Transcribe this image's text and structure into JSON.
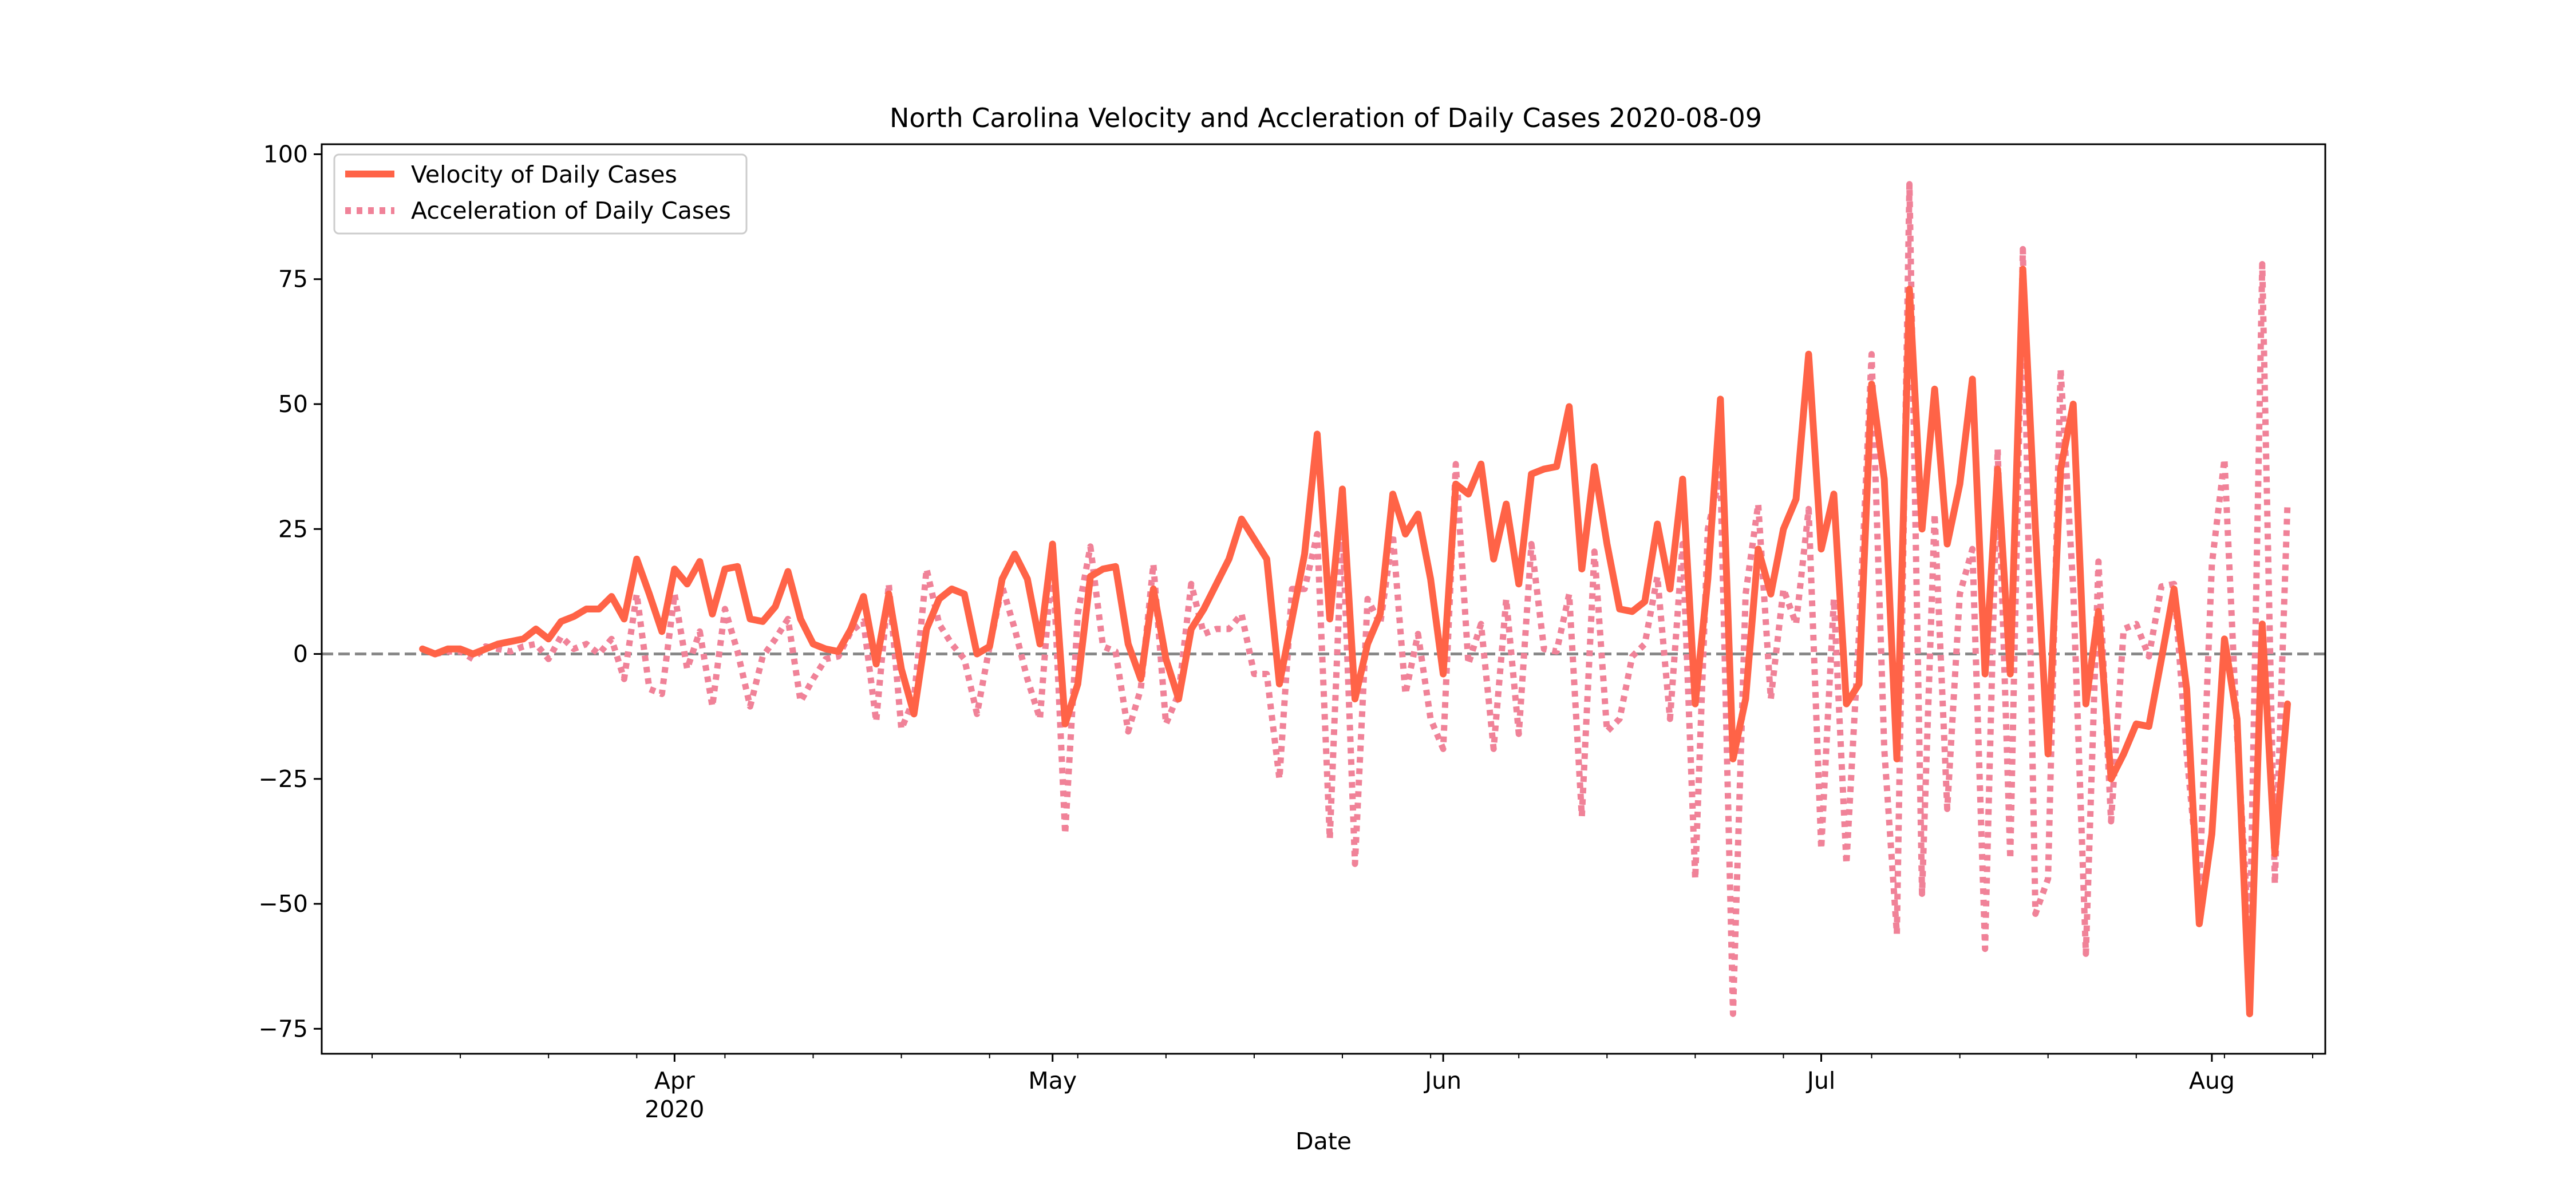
{
  "chart_data": {
    "type": "line",
    "title": "North Carolina Velocity and Accleration of Daily Cases 2020-08-09",
    "xlabel": "Date",
    "ylabel": "",
    "xlim": [
      "2020-03-04",
      "2020-08-10"
    ],
    "ylim": [
      -80,
      102
    ],
    "grid": false,
    "legend_position": "upper left",
    "x_ticks": [
      {
        "date": "2020-04-01",
        "label": "Apr",
        "sublabel": "2020"
      },
      {
        "date": "2020-05-01",
        "label": "May",
        "sublabel": ""
      },
      {
        "date": "2020-06-01",
        "label": "Jun",
        "sublabel": ""
      },
      {
        "date": "2020-07-01",
        "label": "Jul",
        "sublabel": ""
      },
      {
        "date": "2020-08-01",
        "label": "Aug",
        "sublabel": ""
      }
    ],
    "y_ticks": [
      {
        "value": 100,
        "label": "100"
      },
      {
        "value": 75,
        "label": "75"
      },
      {
        "value": 50,
        "label": "50"
      },
      {
        "value": 25,
        "label": "25"
      },
      {
        "value": 0,
        "label": "0"
      },
      {
        "value": -25,
        "label": "−25"
      },
      {
        "value": -50,
        "label": "−50"
      },
      {
        "value": -75,
        "label": "−75"
      }
    ],
    "reference_line": {
      "y": 0,
      "color": "#888888",
      "style": "dashed"
    },
    "start_date": "2020-03-12",
    "series": [
      {
        "name": "Velocity of Daily Cases",
        "color": "#ff6347",
        "style": "solid",
        "values": [
          1,
          0,
          1,
          1,
          0,
          1,
          2,
          2.5,
          3,
          5,
          3,
          6.5,
          7.5,
          9,
          9,
          11.5,
          7,
          19,
          12,
          4.5,
          17,
          14,
          18.5,
          8,
          17,
          17.5,
          7,
          6.5,
          9.5,
          16.5,
          7,
          2,
          1,
          0.5,
          5,
          11.5,
          -2,
          12,
          -3,
          -12,
          5,
          11,
          13,
          12,
          0,
          1.5,
          15,
          20,
          15,
          2,
          22,
          -14,
          -6,
          15.5,
          17,
          17.5,
          2,
          -5,
          13,
          -1,
          -9,
          5,
          9,
          14,
          19,
          27,
          23,
          19,
          -6,
          7,
          20,
          44,
          7,
          33,
          -9,
          2,
          8,
          32,
          24,
          28,
          15,
          -4,
          34,
          32,
          38,
          19,
          30,
          14,
          36,
          37,
          37.5,
          49.5,
          17,
          37.5,
          22,
          9,
          8.5,
          10.5,
          26,
          13,
          35,
          -10,
          15,
          51,
          -21,
          -9,
          21,
          12,
          25,
          31,
          60,
          21,
          32,
          -10,
          -6,
          54,
          35,
          -21,
          73,
          25,
          53,
          22,
          34,
          55,
          -4,
          37,
          -4,
          77,
          25,
          -20,
          37,
          50,
          -10,
          8.5,
          -25,
          -20,
          -14,
          -14.5,
          -1,
          13,
          -7,
          -54,
          -36,
          3,
          -13,
          -72,
          6,
          -40,
          -10
        ]
      },
      {
        "name": "Acceleration of Daily Cases",
        "color": "#f08298",
        "style": "dotted",
        "values": [
          null,
          0,
          0.5,
          0.5,
          -1,
          1.5,
          1,
          0.5,
          1.5,
          2,
          -1,
          3.5,
          1,
          2,
          0,
          3,
          -5,
          12,
          -7,
          -8,
          12,
          -3,
          4.5,
          -10.5,
          9,
          0.5,
          -10.5,
          -0.5,
          3,
          7,
          -9.5,
          -5,
          -1,
          -0.5,
          4.5,
          6.5,
          -13.5,
          14,
          -15,
          -9,
          17,
          6,
          2,
          -1,
          -12,
          1.5,
          13.5,
          5,
          -5,
          -13,
          20,
          -36,
          8,
          21.5,
          1.5,
          0.5,
          -15.5,
          -7,
          18,
          -14,
          -8,
          14,
          4,
          5,
          5,
          8,
          -4,
          -4,
          -25,
          13,
          13,
          24,
          -37,
          26,
          -42,
          11,
          6,
          24,
          -8,
          4,
          -13,
          -19,
          38,
          -2,
          6,
          -19,
          11,
          -16,
          22,
          1,
          0.5,
          12,
          -32.5,
          20.5,
          -15.5,
          -13,
          -0.5,
          2,
          15.5,
          -13,
          22,
          -45,
          25,
          36,
          -72,
          12,
          30,
          -9,
          13,
          6,
          29,
          -39,
          11,
          -42,
          4,
          60,
          -19,
          -56,
          94,
          -48,
          28,
          -31,
          12,
          21,
          -59,
          41,
          -41,
          81,
          -52,
          -45,
          57,
          13,
          -60,
          18.5,
          -33.5,
          5,
          6,
          -0.5,
          13.5,
          14,
          -20,
          -47,
          18,
          39,
          -16,
          -59,
          78,
          -46,
          30
        ]
      }
    ]
  }
}
